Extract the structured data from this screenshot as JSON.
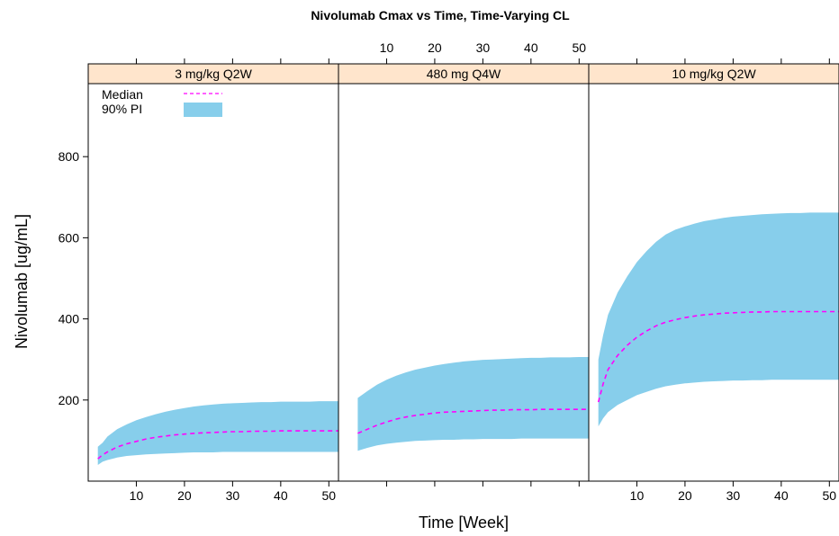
{
  "chart_data": {
    "type": "area",
    "title": "Nivolumab Cmax vs Time, Time-Varying CL",
    "xlabel": "Time [Week]",
    "ylabel": "Nivolumab [ug/mL]",
    "xlim": [
      0,
      52
    ],
    "ylim": [
      0,
      980
    ],
    "xticks": [
      10,
      20,
      30,
      40,
      50
    ],
    "yticks": [
      200,
      400,
      600,
      800
    ],
    "legend": {
      "placement": "top-left",
      "entries": [
        {
          "label": "Median",
          "type": "line",
          "color": "#ff00ff",
          "style": "dashed"
        },
        {
          "label": "90% PI",
          "type": "fill",
          "color": "#87ceeb"
        }
      ]
    },
    "strip_color": "#ffe5cc",
    "panels": [
      {
        "name": "3 mg/kg Q2W",
        "x": [
          2,
          3,
          4,
          6,
          8,
          10,
          12,
          14,
          16,
          18,
          20,
          22,
          24,
          26,
          28,
          30,
          32,
          34,
          36,
          38,
          40,
          42,
          44,
          46,
          48,
          50,
          52
        ],
        "lower": [
          40,
          48,
          52,
          58,
          62,
          64,
          66,
          67,
          68,
          69,
          70,
          71,
          71,
          71,
          72,
          72,
          72,
          72,
          72,
          72,
          72,
          72,
          72,
          72,
          72,
          72,
          72
        ],
        "median": [
          55,
          65,
          72,
          84,
          92,
          98,
          104,
          108,
          111,
          114,
          116,
          118,
          119,
          120,
          121,
          122,
          122,
          123,
          123,
          123,
          124,
          124,
          124,
          124,
          124,
          124,
          124
        ],
        "upper": [
          85,
          95,
          110,
          128,
          140,
          150,
          158,
          165,
          171,
          176,
          180,
          184,
          187,
          189,
          191,
          192,
          193,
          194,
          195,
          195,
          196,
          196,
          196,
          196,
          197,
          197,
          197
        ]
      },
      {
        "name": "480 mg Q4W",
        "x": [
          4,
          6,
          8,
          10,
          12,
          14,
          16,
          18,
          20,
          22,
          24,
          26,
          28,
          30,
          32,
          34,
          36,
          38,
          40,
          42,
          44,
          46,
          48,
          50,
          52
        ],
        "lower": [
          75,
          82,
          88,
          92,
          95,
          97,
          99,
          100,
          101,
          102,
          102,
          103,
          103,
          104,
          104,
          104,
          104,
          105,
          105,
          105,
          105,
          105,
          105,
          105,
          105
        ],
        "median": [
          118,
          128,
          138,
          146,
          153,
          158,
          162,
          165,
          168,
          170,
          171,
          172,
          173,
          174,
          175,
          175,
          176,
          176,
          176,
          177,
          177,
          177,
          177,
          177,
          177
        ],
        "upper": [
          205,
          222,
          238,
          250,
          260,
          268,
          275,
          280,
          285,
          289,
          292,
          295,
          297,
          299,
          300,
          301,
          302,
          303,
          304,
          304,
          305,
          305,
          305,
          306,
          306
        ]
      },
      {
        "name": "10 mg/kg Q2W",
        "x": [
          2,
          3,
          4,
          6,
          8,
          10,
          12,
          14,
          16,
          18,
          20,
          22,
          24,
          26,
          28,
          30,
          32,
          34,
          36,
          38,
          40,
          42,
          44,
          46,
          48,
          50,
          52
        ],
        "lower": [
          135,
          155,
          170,
          188,
          200,
          212,
          220,
          228,
          234,
          238,
          241,
          243,
          245,
          246,
          247,
          248,
          248,
          249,
          249,
          250,
          250,
          250,
          250,
          250,
          250,
          250,
          250
        ],
        "median": [
          195,
          240,
          275,
          310,
          335,
          355,
          370,
          383,
          392,
          398,
          403,
          407,
          410,
          412,
          414,
          415,
          416,
          417,
          417,
          418,
          418,
          418,
          418,
          418,
          418,
          418,
          418
        ],
        "upper": [
          300,
          360,
          410,
          465,
          505,
          540,
          567,
          590,
          608,
          620,
          628,
          635,
          641,
          645,
          649,
          652,
          654,
          656,
          658,
          659,
          660,
          661,
          661,
          662,
          662,
          662,
          662
        ]
      }
    ]
  }
}
